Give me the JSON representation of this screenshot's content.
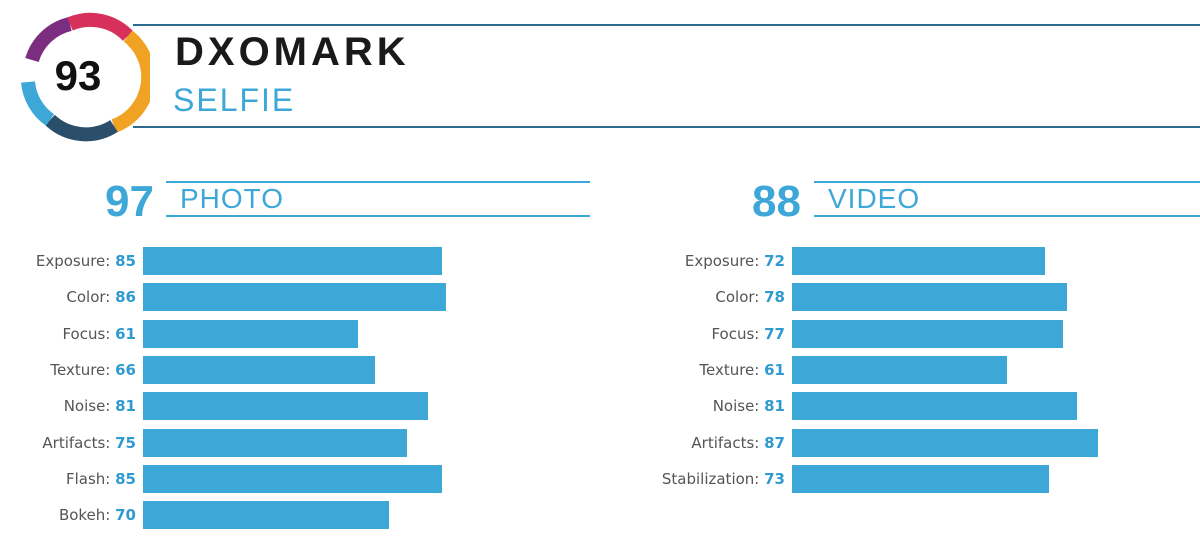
{
  "header": {
    "overall_score": "93",
    "brand": "DXOMARK",
    "category": "SELFIE"
  },
  "colors": {
    "accent": "#3da8d8",
    "header_line": "#2a6b8f",
    "ring_purple": "#7b2d7f",
    "ring_red": "#d6305b",
    "ring_orange": "#f0a323",
    "ring_blue": "#3da8d8",
    "ring_navy": "#2b4f6b"
  },
  "chart_data": [
    {
      "type": "bar",
      "title": "PHOTO",
      "score": "97",
      "categories": [
        "Exposure",
        "Color",
        "Focus",
        "Texture",
        "Noise",
        "Artifacts",
        "Flash",
        "Bokeh"
      ],
      "values": [
        85,
        86,
        61,
        66,
        81,
        75,
        85,
        70
      ],
      "orientation": "horizontal"
    },
    {
      "type": "bar",
      "title": "VIDEO",
      "score": "88",
      "categories": [
        "Exposure",
        "Color",
        "Focus",
        "Texture",
        "Noise",
        "Artifacts",
        "Stabilization"
      ],
      "values": [
        72,
        78,
        77,
        61,
        81,
        87,
        73
      ],
      "orientation": "horizontal"
    }
  ]
}
